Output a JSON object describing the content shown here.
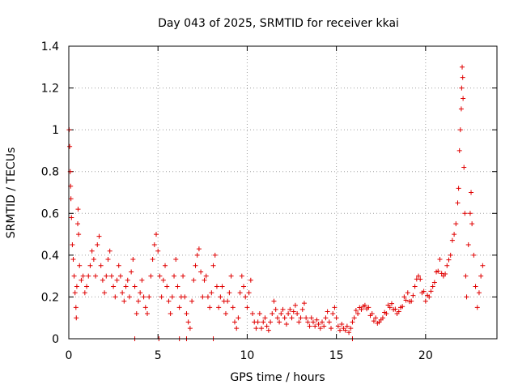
{
  "chart_data": {
    "type": "scatter",
    "title": "Day 043 of 2025, SRMTID for receiver kkai",
    "xlabel": "GPS time / hours",
    "ylabel": "SRMTID / TECUs",
    "xlim": [
      0,
      24
    ],
    "ylim": [
      0,
      1.4
    ],
    "xticks": [
      0,
      5,
      10,
      15,
      20
    ],
    "xtick_labels": [
      "0",
      "5",
      "10",
      "15",
      "20"
    ],
    "yticks": [
      0,
      0.2,
      0.4,
      0.6,
      0.8,
      1.0,
      1.2,
      1.4
    ],
    "ytick_labels": [
      "0",
      "0.2",
      "0.4",
      "0.6",
      "0.8",
      "1",
      "1.2",
      "1.4"
    ],
    "grid": true,
    "marker": "+",
    "color": "#e00000",
    "series": [
      {
        "name": "kkai",
        "points": [
          [
            0.02,
            1.0
          ],
          [
            0.05,
            0.92
          ],
          [
            0.08,
            0.8
          ],
          [
            0.1,
            0.73
          ],
          [
            0.12,
            0.67
          ],
          [
            0.15,
            0.58
          ],
          [
            0.2,
            0.45
          ],
          [
            0.25,
            0.38
          ],
          [
            0.3,
            0.3
          ],
          [
            0.35,
            0.22
          ],
          [
            0.4,
            0.15
          ],
          [
            0.42,
            0.1
          ],
          [
            0.45,
            0.25
          ],
          [
            0.5,
            0.55
          ],
          [
            0.52,
            0.62
          ],
          [
            0.55,
            0.5
          ],
          [
            0.6,
            0.35
          ],
          [
            0.7,
            0.28
          ],
          [
            0.8,
            0.3
          ],
          [
            0.9,
            0.22
          ],
          [
            1.0,
            0.25
          ],
          [
            1.1,
            0.3
          ],
          [
            1.2,
            0.35
          ],
          [
            1.3,
            0.42
          ],
          [
            1.4,
            0.38
          ],
          [
            1.5,
            0.3
          ],
          [
            1.6,
            0.45
          ],
          [
            1.7,
            0.49
          ],
          [
            1.8,
            0.35
          ],
          [
            1.9,
            0.28
          ],
          [
            2.0,
            0.22
          ],
          [
            2.1,
            0.3
          ],
          [
            2.2,
            0.38
          ],
          [
            2.3,
            0.42
          ],
          [
            2.4,
            0.3
          ],
          [
            2.5,
            0.25
          ],
          [
            2.6,
            0.2
          ],
          [
            2.7,
            0.28
          ],
          [
            2.8,
            0.35
          ],
          [
            2.9,
            0.3
          ],
          [
            3.0,
            0.22
          ],
          [
            3.1,
            0.18
          ],
          [
            3.2,
            0.25
          ],
          [
            3.3,
            0.28
          ],
          [
            3.4,
            0.2
          ],
          [
            3.5,
            0.32
          ],
          [
            3.6,
            0.38
          ],
          [
            3.7,
            0.25
          ],
          [
            3.8,
            0.12
          ],
          [
            3.9,
            0.18
          ],
          [
            4.0,
            0.22
          ],
          [
            4.1,
            0.28
          ],
          [
            4.2,
            0.2
          ],
          [
            4.3,
            0.15
          ],
          [
            4.4,
            0.12
          ],
          [
            4.5,
            0.2
          ],
          [
            4.6,
            0.3
          ],
          [
            4.7,
            0.38
          ],
          [
            4.8,
            0.45
          ],
          [
            4.9,
            0.5
          ],
          [
            5.0,
            0.42
          ],
          [
            5.1,
            0.3
          ],
          [
            5.2,
            0.2
          ],
          [
            5.3,
            0.28
          ],
          [
            5.4,
            0.35
          ],
          [
            5.5,
            0.25
          ],
          [
            5.6,
            0.18
          ],
          [
            5.7,
            0.12
          ],
          [
            5.8,
            0.2
          ],
          [
            5.9,
            0.3
          ],
          [
            6.0,
            0.38
          ],
          [
            6.1,
            0.25
          ],
          [
            6.2,
            0.15
          ],
          [
            6.3,
            0.2
          ],
          [
            6.4,
            0.3
          ],
          [
            6.5,
            0.2
          ],
          [
            6.6,
            0.12
          ],
          [
            6.7,
            0.08
          ],
          [
            6.8,
            0.05
          ],
          [
            6.9,
            0.18
          ],
          [
            7.0,
            0.28
          ],
          [
            7.1,
            0.35
          ],
          [
            7.2,
            0.4
          ],
          [
            7.3,
            0.43
          ],
          [
            7.4,
            0.32
          ],
          [
            7.5,
            0.2
          ],
          [
            7.6,
            0.28
          ],
          [
            7.7,
            0.3
          ],
          [
            7.8,
            0.2
          ],
          [
            7.9,
            0.15
          ],
          [
            8.0,
            0.22
          ],
          [
            8.1,
            0.35
          ],
          [
            8.2,
            0.4
          ],
          [
            8.3,
            0.25
          ],
          [
            8.4,
            0.15
          ],
          [
            8.5,
            0.2
          ],
          [
            8.6,
            0.25
          ],
          [
            8.7,
            0.18
          ],
          [
            8.8,
            0.12
          ],
          [
            8.9,
            0.18
          ],
          [
            9.0,
            0.22
          ],
          [
            9.1,
            0.3
          ],
          [
            9.2,
            0.15
          ],
          [
            9.3,
            0.08
          ],
          [
            9.4,
            0.05
          ],
          [
            9.5,
            0.1
          ],
          [
            9.6,
            0.22
          ],
          [
            9.7,
            0.3
          ],
          [
            9.8,
            0.25
          ],
          [
            9.9,
            0.2
          ],
          [
            10.0,
            0.15
          ],
          [
            10.1,
            0.22
          ],
          [
            10.2,
            0.28
          ],
          [
            10.3,
            0.12
          ],
          [
            10.4,
            0.08
          ],
          [
            10.5,
            0.05
          ],
          [
            10.6,
            0.08
          ],
          [
            10.7,
            0.12
          ],
          [
            10.8,
            0.05
          ],
          [
            10.9,
            0.08
          ],
          [
            11.0,
            0.1
          ],
          [
            11.1,
            0.06
          ],
          [
            11.2,
            0.04
          ],
          [
            11.3,
            0.08
          ],
          [
            11.4,
            0.12
          ],
          [
            11.5,
            0.18
          ],
          [
            11.6,
            0.14
          ],
          [
            11.7,
            0.1
          ],
          [
            11.8,
            0.08
          ],
          [
            11.9,
            0.12
          ],
          [
            12.0,
            0.14
          ],
          [
            12.1,
            0.1
          ],
          [
            12.2,
            0.07
          ],
          [
            12.3,
            0.12
          ],
          [
            12.4,
            0.14
          ],
          [
            12.5,
            0.1
          ],
          [
            12.6,
            0.13
          ],
          [
            12.7,
            0.16
          ],
          [
            12.8,
            0.12
          ],
          [
            12.9,
            0.08
          ],
          [
            13.0,
            0.1
          ],
          [
            13.1,
            0.14
          ],
          [
            13.2,
            0.17
          ],
          [
            13.3,
            0.1
          ],
          [
            13.4,
            0.08
          ],
          [
            13.5,
            0.06
          ],
          [
            13.6,
            0.1
          ],
          [
            13.7,
            0.08
          ],
          [
            13.8,
            0.06
          ],
          [
            13.9,
            0.09
          ],
          [
            14.0,
            0.07
          ],
          [
            14.1,
            0.05
          ],
          [
            14.2,
            0.08
          ],
          [
            14.3,
            0.06
          ],
          [
            14.4,
            0.1
          ],
          [
            14.5,
            0.13
          ],
          [
            14.6,
            0.08
          ],
          [
            14.7,
            0.05
          ],
          [
            14.8,
            0.12
          ],
          [
            14.9,
            0.15
          ],
          [
            15.0,
            0.1
          ],
          [
            15.1,
            0.06
          ],
          [
            15.2,
            0.04
          ],
          [
            15.3,
            0.07
          ],
          [
            15.4,
            0.05
          ],
          [
            15.5,
            0.04
          ],
          [
            15.6,
            0.06
          ],
          [
            15.7,
            0.03
          ],
          [
            15.8,
            0.05
          ],
          [
            15.9,
            0.08
          ],
          [
            16.0,
            0.1
          ],
          [
            16.2,
            0.12
          ],
          [
            16.4,
            0.14
          ],
          [
            16.6,
            0.16
          ],
          [
            16.8,
            0.15
          ],
          [
            17.0,
            0.12
          ],
          [
            17.2,
            0.1
          ],
          [
            17.4,
            0.08
          ],
          [
            17.6,
            0.1
          ],
          [
            17.8,
            0.12
          ],
          [
            18.0,
            0.15
          ],
          [
            18.2,
            0.14
          ],
          [
            18.4,
            0.12
          ],
          [
            18.6,
            0.15
          ],
          [
            18.8,
            0.2
          ],
          [
            19.0,
            0.22
          ],
          [
            19.2,
            0.18
          ],
          [
            19.4,
            0.25
          ],
          [
            19.6,
            0.3
          ],
          [
            19.8,
            0.22
          ],
          [
            20.0,
            0.18
          ],
          [
            20.2,
            0.2
          ],
          [
            20.4,
            0.25
          ],
          [
            20.6,
            0.32
          ],
          [
            20.8,
            0.38
          ],
          [
            21.0,
            0.3
          ],
          [
            21.2,
            0.35
          ],
          [
            21.4,
            0.4
          ],
          [
            21.6,
            0.5
          ],
          [
            21.7,
            0.55
          ],
          [
            21.8,
            0.65
          ],
          [
            21.85,
            0.72
          ],
          [
            21.9,
            0.9
          ],
          [
            21.95,
            1.0
          ],
          [
            22.0,
            1.1
          ],
          [
            22.02,
            1.2
          ],
          [
            22.05,
            1.3
          ],
          [
            22.08,
            1.25
          ],
          [
            22.1,
            1.15
          ],
          [
            22.15,
            0.82
          ],
          [
            22.2,
            0.6
          ],
          [
            22.25,
            0.3
          ],
          [
            22.3,
            0.2
          ],
          [
            22.4,
            0.45
          ],
          [
            22.5,
            0.6
          ],
          [
            22.55,
            0.7
          ],
          [
            22.6,
            0.55
          ],
          [
            22.7,
            0.4
          ],
          [
            22.8,
            0.25
          ],
          [
            22.9,
            0.15
          ],
          [
            23.0,
            0.22
          ],
          [
            23.1,
            0.3
          ],
          [
            23.2,
            0.35
          ]
        ],
        "zero_points": [
          [
            3.7,
            0.0
          ],
          [
            5.05,
            0.0
          ],
          [
            6.2,
            0.0
          ],
          [
            6.6,
            0.0
          ],
          [
            8.1,
            0.0
          ],
          [
            15.9,
            0.0
          ]
        ]
      }
    ]
  }
}
